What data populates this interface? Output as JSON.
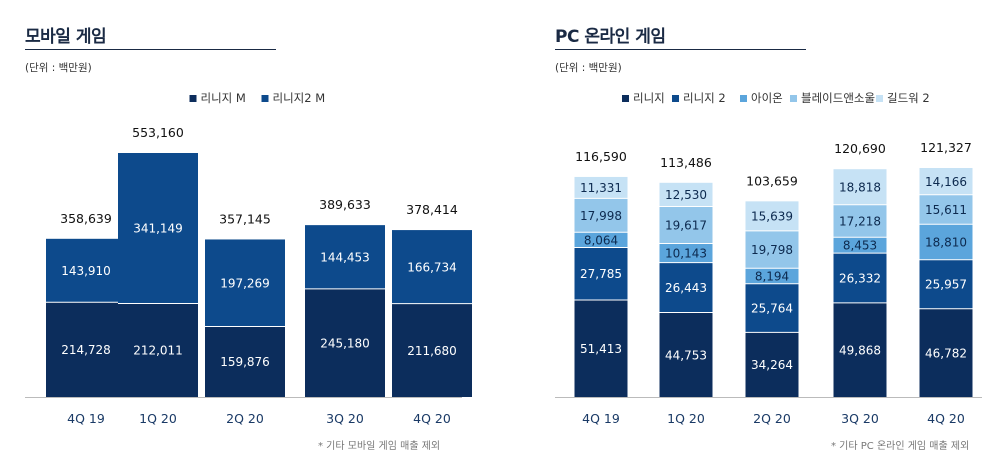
{
  "charts": [
    {
      "title": "모바일 게임",
      "unit": "(단위 : 백만원)",
      "footnote": "* 기타 모바일 게임 매출 제외",
      "chart_data": {
        "type": "bar",
        "stacked": true,
        "categories": [
          "4Q 19",
          "1Q 20",
          "2Q 20",
          "3Q 20",
          "4Q 20"
        ],
        "series": [
          {
            "name": "리니지 M",
            "color": "#0c2d5c",
            "label_color": "#ffffff",
            "values": [
              214728,
              212011,
              159876,
              245180,
              211680
            ]
          },
          {
            "name": "리니지2 M",
            "color": "#0d4a8c",
            "label_color": "#ffffff",
            "values": [
              143910,
              341149,
              197269,
              144453,
              166734
            ]
          }
        ],
        "totals": [
          358639,
          553160,
          357145,
          389633,
          378414
        ],
        "ylim": [
          0,
          553160
        ],
        "legend": "top-center",
        "grid": false
      }
    },
    {
      "title": "PC 온라인 게임",
      "unit": "(단위 : 백만원)",
      "footnote": "* 기타 PC 온라인 게임 매출 제외",
      "chart_data": {
        "type": "bar",
        "stacked": true,
        "categories": [
          "4Q 19",
          "1Q 20",
          "2Q 20",
          "3Q 20",
          "4Q 20"
        ],
        "series": [
          {
            "name": "리니지",
            "color": "#0c2d5c",
            "label_color": "#ffffff",
            "values": [
              51413,
              44753,
              34264,
              49868,
              46782
            ]
          },
          {
            "name": "리니지 2",
            "color": "#0d4a8c",
            "label_color": "#ffffff",
            "values": [
              27785,
              26443,
              25764,
              26332,
              25957
            ]
          },
          {
            "name": "아이온",
            "color": "#5ba5dc",
            "label_color": "#0d2a4f",
            "values": [
              8064,
              10143,
              8194,
              8453,
              18810
            ]
          },
          {
            "name": "블레이드앤소울",
            "color": "#93c6ea",
            "label_color": "#0d2a4f",
            "values": [
              17998,
              19617,
              19798,
              17218,
              15611
            ]
          },
          {
            "name": "길드워 2",
            "color": "#c6e2f5",
            "label_color": "#0d2a4f",
            "values": [
              11331,
              12530,
              15639,
              18818,
              14166
            ]
          }
        ],
        "totals": [
          116590,
          113486,
          103659,
          120690,
          121327
        ],
        "ylim": [
          0,
          121327
        ],
        "legend": "top-center",
        "grid": false
      }
    }
  ]
}
